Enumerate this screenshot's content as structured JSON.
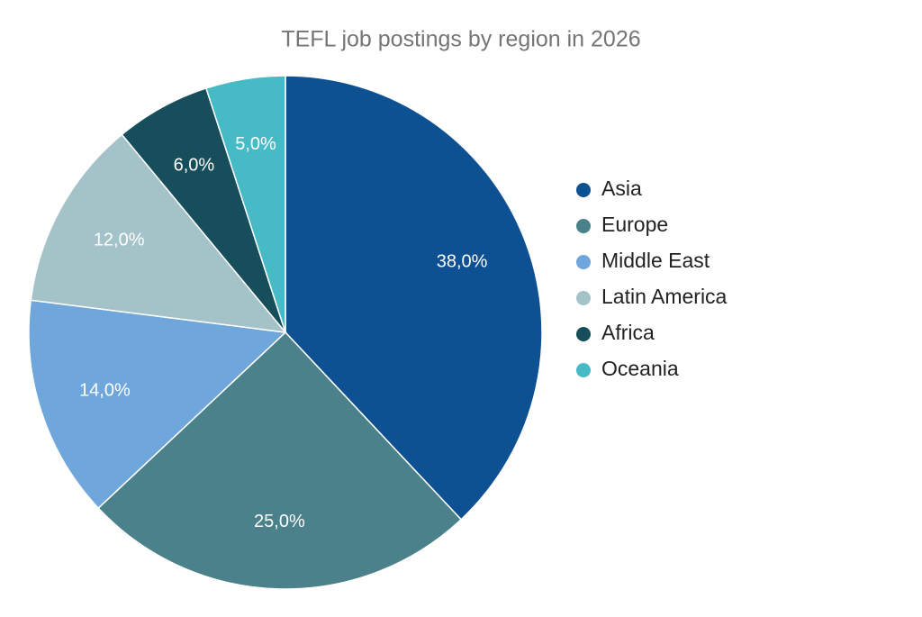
{
  "chart_data": {
    "type": "pie",
    "title": "TEFL job postings by region in 2026",
    "categories": [
      "Asia",
      "Europe",
      "Middle East",
      "Latin America",
      "Africa",
      "Oceania"
    ],
    "values": [
      38,
      25,
      14,
      12,
      6,
      5
    ],
    "value_labels": [
      "38,0%",
      "25,0%",
      "14,0%",
      "12,0%",
      "6,0%",
      "5,0%"
    ],
    "colors": [
      "#0e5193",
      "#4a818b",
      "#6fa7dc",
      "#a3c3c8",
      "#164e5b",
      "#47bbc5"
    ],
    "legend": "right"
  }
}
